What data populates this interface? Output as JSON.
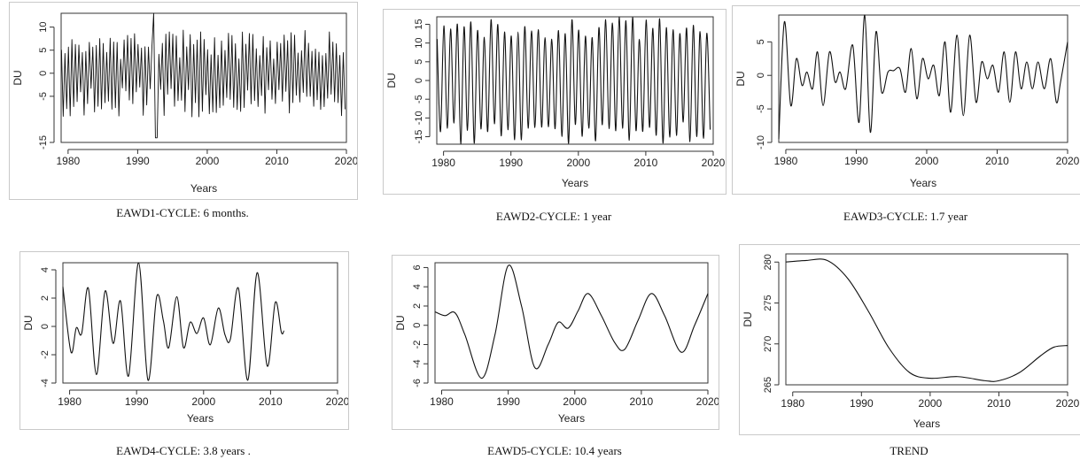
{
  "chart_data": [
    {
      "type": "line",
      "caption": "EAWD1-CYCLE: 6 months.",
      "xlabel": "Years",
      "ylabel": "DU",
      "xlim": [
        1979,
        2020
      ],
      "ylim": [
        -15,
        13
      ],
      "xticks": [
        1980,
        1990,
        2000,
        2010,
        2020
      ],
      "yticks": [
        -15,
        -5,
        0,
        5,
        10
      ],
      "signal": {
        "kind": "oscillation",
        "period_years": 0.5,
        "amplitude": 6.5,
        "amplitude_range": [
          4,
          12
        ]
      },
      "annotations": [
        {
          "x": 1992.3,
          "y": 13
        },
        {
          "x": 1992.6,
          "y": -14
        }
      ]
    },
    {
      "type": "line",
      "caption": "EAWD2-CYCLE: 1 year",
      "xlabel": "Years",
      "ylabel": "DU",
      "xlim": [
        1979,
        2020
      ],
      "ylim": [
        -17,
        17
      ],
      "xticks": [
        1980,
        1990,
        2000,
        2010,
        2020
      ],
      "yticks": [
        -15,
        -10,
        -5,
        0,
        5,
        10,
        15
      ],
      "signal": {
        "kind": "oscillation",
        "period_years": 1.0,
        "amplitude": 14.5,
        "amplitude_range": [
          11,
          17
        ]
      }
    },
    {
      "type": "line",
      "caption": "EAWD3-CYCLE: 1.7 year",
      "xlabel": "Years",
      "ylabel": "DU",
      "xlim": [
        1979,
        2020
      ],
      "ylim": [
        -10,
        9
      ],
      "xticks": [
        1980,
        1990,
        2000,
        2010,
        2020
      ],
      "yticks": [
        -10,
        -5,
        0,
        5
      ],
      "points": [
        [
          1979,
          -9.5
        ],
        [
          1979.8,
          8
        ],
        [
          1980.7,
          -4.5
        ],
        [
          1981.5,
          2.5
        ],
        [
          1982.3,
          -1.5
        ],
        [
          1983,
          0.5
        ],
        [
          1983.8,
          -2
        ],
        [
          1984.5,
          3.5
        ],
        [
          1985.3,
          -4.5
        ],
        [
          1986.2,
          3.5
        ],
        [
          1987,
          -1
        ],
        [
          1987.7,
          0.5
        ],
        [
          1988.5,
          -2
        ],
        [
          1989.5,
          4.5
        ],
        [
          1990.4,
          -7
        ],
        [
          1991.2,
          9
        ],
        [
          1992,
          -8.5
        ],
        [
          1992.8,
          6.5
        ],
        [
          1993.6,
          -2.5
        ],
        [
          1994.5,
          0.5
        ],
        [
          1995.3,
          0.7
        ],
        [
          1996.2,
          1
        ],
        [
          1997,
          -2.5
        ],
        [
          1997.8,
          4
        ],
        [
          1998.6,
          -3.5
        ],
        [
          1999.4,
          2.5
        ],
        [
          2000.2,
          -0.5
        ],
        [
          2001,
          1.5
        ],
        [
          2001.8,
          -3
        ],
        [
          2002.6,
          5
        ],
        [
          2003.4,
          -5.5
        ],
        [
          2004.3,
          6
        ],
        [
          2005.2,
          -6
        ],
        [
          2006.1,
          6
        ],
        [
          2007,
          -4
        ],
        [
          2007.8,
          2
        ],
        [
          2008.6,
          -0.5
        ],
        [
          2009.4,
          1.5
        ],
        [
          2010.2,
          -2.5
        ],
        [
          2011,
          3.5
        ],
        [
          2011.8,
          -4
        ],
        [
          2012.6,
          3.5
        ],
        [
          2013.4,
          -2
        ],
        [
          2014.2,
          2
        ],
        [
          2015,
          -2
        ],
        [
          2015.8,
          2
        ],
        [
          2016.7,
          -2
        ],
        [
          2017.6,
          2.5
        ],
        [
          2018.4,
          -4
        ],
        [
          2019,
          -1
        ],
        [
          2020,
          5
        ]
      ]
    },
    {
      "type": "line",
      "caption": "EAWD4-CYCLE: 3.8 years .",
      "xlabel": "Years",
      "ylabel": "DU",
      "xlim": [
        1979,
        2020
      ],
      "ylim": [
        -4,
        4.5
      ],
      "xticks": [
        1980,
        1990,
        2000,
        2010,
        2020
      ],
      "yticks": [
        -4,
        -2,
        0,
        2,
        4
      ],
      "points": [
        [
          1979,
          2.8
        ],
        [
          1980.2,
          -1.8
        ],
        [
          1981,
          -0.1
        ],
        [
          1981.8,
          -0.5
        ],
        [
          1982.8,
          2.7
        ],
        [
          1984,
          -3.4
        ],
        [
          1985.3,
          2.5
        ],
        [
          1986.5,
          -1.2
        ],
        [
          1987.6,
          1.8
        ],
        [
          1988.8,
          -3.5
        ],
        [
          1990.3,
          4.5
        ],
        [
          1991.7,
          -3.8
        ],
        [
          1993,
          2.1
        ],
        [
          1994,
          0.4
        ],
        [
          1994.8,
          -1.5
        ],
        [
          1996,
          2.1
        ],
        [
          1997,
          -1.5
        ],
        [
          1998,
          0.3
        ],
        [
          1999,
          -0.5
        ],
        [
          2000,
          0.6
        ],
        [
          2001,
          -1.3
        ],
        [
          2002.2,
          1.3
        ],
        [
          2003.2,
          -0.6
        ],
        [
          2004,
          -0.9
        ],
        [
          2005.2,
          2.7
        ],
        [
          2006.6,
          -3.8
        ],
        [
          2008,
          3.8
        ],
        [
          2009.5,
          -2.8
        ],
        [
          2010.7,
          1.7
        ],
        [
          2011.6,
          -0.4
        ],
        [
          2012,
          -0.3
        ]
      ]
    },
    {
      "type": "line",
      "caption": "EAWD5-CYCLE: 10.4 years",
      "xlabel": "Years",
      "ylabel": "DU",
      "xlim": [
        1979,
        2020
      ],
      "ylim": [
        -6,
        6.5
      ],
      "xticks": [
        1980,
        1990,
        2000,
        2010,
        2020
      ],
      "yticks": [
        -6,
        -4,
        -2,
        0,
        2,
        4,
        6
      ],
      "points": [
        [
          1979,
          1.4
        ],
        [
          1980.5,
          1
        ],
        [
          1982,
          1.3
        ],
        [
          1983.5,
          -1
        ],
        [
          1986,
          -5.5
        ],
        [
          1988,
          -1
        ],
        [
          1990,
          6.2
        ],
        [
          1992,
          2
        ],
        [
          1994,
          -4.4
        ],
        [
          1996,
          -2
        ],
        [
          1997.5,
          0.3
        ],
        [
          1999,
          -0.3
        ],
        [
          2000.5,
          1.5
        ],
        [
          2002,
          3.3
        ],
        [
          2004,
          1
        ],
        [
          2006,
          -1.8
        ],
        [
          2007.5,
          -2.5
        ],
        [
          2009.5,
          0.5
        ],
        [
          2011.5,
          3.3
        ],
        [
          2013.5,
          1
        ],
        [
          2016,
          -2.8
        ],
        [
          2018,
          0
        ],
        [
          2020,
          3.3
        ]
      ]
    },
    {
      "type": "line",
      "caption": "TREND",
      "xlabel": "Years",
      "ylabel": "DU",
      "xlim": [
        1979,
        2020
      ],
      "ylim": [
        265,
        281
      ],
      "xticks": [
        1980,
        1990,
        2000,
        2010,
        2020
      ],
      "yticks": [
        265,
        270,
        275,
        280
      ],
      "points": [
        [
          1979,
          280
        ],
        [
          1982,
          280.2
        ],
        [
          1985,
          280.2
        ],
        [
          1988,
          278
        ],
        [
          1991,
          274
        ],
        [
          1994,
          269.5
        ],
        [
          1997,
          266.5
        ],
        [
          2000,
          265.8
        ],
        [
          2004,
          266
        ],
        [
          2008,
          265.5
        ],
        [
          2010,
          265.5
        ],
        [
          2013,
          266.5
        ],
        [
          2016,
          268.5
        ],
        [
          2018,
          269.6
        ],
        [
          2020,
          269.8
        ]
      ]
    }
  ]
}
